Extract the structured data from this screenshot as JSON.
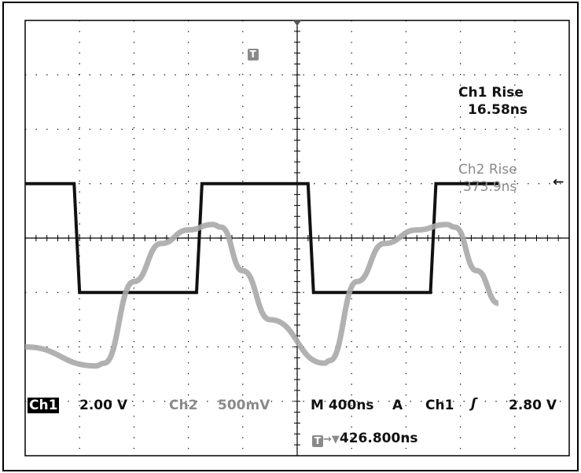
{
  "measurements": {
    "ch1_rise_label": "Ch1 Rise",
    "ch1_rise_value": "16.58ns",
    "ch2_rise_label": "Ch2 Rise",
    "ch2_rise_value": "373.9ns"
  },
  "status_bar": {
    "ch1_name": "Ch1",
    "ch1_scale": "2.00 V",
    "ch2_name": "Ch2",
    "ch2_scale": "500mV",
    "timebase": "M 400ns",
    "trigger_mode": "A",
    "trigger_source": "Ch1",
    "trigger_slope_symbol": "ʃ",
    "trigger_level": "2.80 V",
    "trigger_marker": "T",
    "trigger_position": "426.800ns"
  },
  "markers": {
    "trigger_icon": "T",
    "ch2_level_arrow": "←"
  },
  "colors": {
    "ch1": "#111111",
    "ch2": "#a8a8a8",
    "grid": "#000000"
  },
  "chart_data": {
    "type": "line",
    "grid_divisions": {
      "x": 10,
      "y": 8
    },
    "series": [
      {
        "name": "Ch1",
        "x": [
          0,
          0.9,
          0.95,
          1.0,
          3.15,
          3.2,
          3.25,
          4.2,
          4.5,
          5.2,
          5.25,
          5.3,
          7.45,
          7.5,
          7.55,
          8.7
        ],
        "y": [
          1.0,
          1.0,
          0,
          -1.0,
          -1.0,
          0,
          1.0,
          1.0,
          1.0,
          1.0,
          0,
          -1.0,
          -1.0,
          0,
          1.0,
          1.0
        ]
      },
      {
        "name": "Ch2",
        "x": [
          0,
          1.3,
          1.45,
          2.0,
          2.5,
          3.0,
          3.45,
          3.6,
          4.0,
          4.5,
          5.5,
          5.6,
          6.1,
          6.6,
          7.2,
          7.75,
          7.9,
          8.3,
          8.7
        ],
        "y": [
          -2.0,
          -2.35,
          -2.3,
          -0.8,
          -0.1,
          0.15,
          0.25,
          0.2,
          -0.6,
          -1.5,
          -2.3,
          -2.25,
          -0.8,
          -0.1,
          0.15,
          0.25,
          0.2,
          -0.6,
          -1.2
        ]
      }
    ]
  }
}
